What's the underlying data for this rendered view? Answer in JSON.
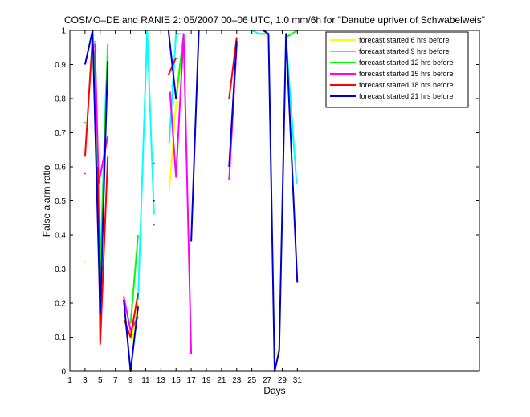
{
  "chart_data": {
    "type": "line",
    "title": "COSMO–DE and RANIE 2: 05/2007 00–06 UTC, 1.0 mm/6h for \"Danube upriver of Schwabelweis\"",
    "xlabel": "Days",
    "ylabel": "False alarm ratio",
    "xlim": [
      1,
      55
    ],
    "ylim": [
      0,
      1
    ],
    "xticks": [
      1,
      3,
      5,
      7,
      9,
      11,
      13,
      15,
      17,
      19,
      21,
      23,
      25,
      27,
      29,
      31
    ],
    "yticks": [
      0,
      0.1,
      0.2,
      0.3,
      0.4,
      0.5,
      0.6,
      0.7,
      0.8,
      0.9,
      1
    ],
    "ytick_labels": [
      "0",
      "0.1",
      "0.2",
      "0.3",
      "0.4",
      "0.5",
      "0.6",
      "0.7",
      "0.8",
      "0.9",
      "1"
    ],
    "grid": false,
    "legend_position": "top-right",
    "series": [
      {
        "name": "forecast started 6 hrs before",
        "color": "#ffff00",
        "segments": [
          [
            [
              3,
              0.32
            ]
          ],
          [
            [
              8.8,
              0.15
            ],
            [
              9.2,
              0.09
            ],
            [
              10,
              0.2
            ]
          ],
          [
            [
              14.1,
              0.53
            ],
            [
              15,
              0.78
            ],
            [
              16,
              0.99
            ]
          ],
          [
            [
              27.8,
              0.04
            ],
            [
              28.5,
              0.06
            ]
          ]
        ]
      },
      {
        "name": "forecast started 9 hrs before",
        "color": "#00ffff",
        "segments": [
          [
            [
              4.3,
              0.97
            ],
            [
              5,
              0.3
            ],
            [
              5.8,
              0.85
            ]
          ],
          [
            [
              10,
              0.21
            ],
            [
              11.2,
              1.0
            ],
            [
              12.1,
              0.46
            ]
          ],
          [
            [
              14.1,
              0.67
            ],
            [
              15,
              0.99
            ],
            [
              15.8,
              0.99
            ]
          ],
          [
            [
              22.2,
              0.67
            ],
            [
              23,
              0.96
            ]
          ],
          [
            [
              25,
              1.0
            ],
            [
              26,
              0.99
            ]
          ],
          [
            [
              29.5,
              0.98
            ],
            [
              30.9,
              0.55
            ]
          ]
        ]
      },
      {
        "name": "forecast started 12 hrs before",
        "color": "#00ff00",
        "segments": [
          [
            [
              3,
              0.73
            ]
          ],
          [
            [
              4.2,
              0.94
            ],
            [
              5,
              0.27
            ],
            [
              6,
              0.96
            ]
          ],
          [
            [
              9,
              0.14
            ],
            [
              10,
              0.4
            ]
          ],
          [
            [
              15,
              0.8
            ],
            [
              16,
              0.99
            ]
          ],
          [
            [
              26,
              0.99
            ],
            [
              27,
              0.99
            ]
          ],
          [
            [
              29.5,
              0.98
            ],
            [
              31,
              1.0
            ]
          ]
        ]
      },
      {
        "name": "forecast started 15 hrs before",
        "color": "#ff00ff",
        "segments": [
          [
            [
              3,
              0.58
            ]
          ],
          [
            [
              4.3,
              0.96
            ],
            [
              4.8,
              0.55
            ],
            [
              6,
              0.69
            ]
          ],
          [
            [
              8.1,
              0.22
            ],
            [
              9,
              0.12
            ],
            [
              10,
              0.16
            ]
          ],
          [
            [
              14.2,
              0.82
            ],
            [
              15,
              0.57
            ],
            [
              16,
              0.99
            ],
            [
              17,
              0.05
            ]
          ],
          [
            [
              22,
              0.56
            ],
            [
              23,
              0.96
            ]
          ]
        ]
      },
      {
        "name": "forecast started 18 hrs before",
        "color": "#ff0000",
        "segments": [
          [
            [
              3,
              0.63
            ],
            [
              4,
              0.98
            ]
          ],
          [
            [
              4.7,
              0.6
            ],
            [
              5,
              0.08
            ],
            [
              6,
              0.63
            ]
          ],
          [
            [
              8.2,
              0.15
            ],
            [
              9,
              0.1
            ],
            [
              10,
              0.23
            ]
          ],
          [
            [
              14,
              0.87
            ],
            [
              15,
              0.92
            ]
          ],
          [
            [
              22,
              0.8
            ],
            [
              23,
              0.98
            ]
          ]
        ]
      },
      {
        "name": "forecast started 21 hrs before",
        "color": "#0000cc",
        "segments": [
          [
            [
              3,
              0.9
            ],
            [
              4,
              1.0
            ],
            [
              5,
              0.17
            ],
            [
              6,
              0.91
            ]
          ],
          [
            [
              8.1,
              0.21
            ],
            [
              9,
              0.0
            ],
            [
              10,
              0.19
            ]
          ],
          [
            [
              14,
              1.0
            ],
            [
              15,
              0.8
            ]
          ],
          [
            [
              17,
              0.38
            ],
            [
              18,
              1.0
            ]
          ],
          [
            [
              22,
              0.6
            ],
            [
              23,
              0.97
            ]
          ],
          [
            [
              26.5,
              1.0
            ],
            [
              27.2,
              0.99
            ],
            [
              28,
              0.0
            ],
            [
              28.6,
              0.06
            ],
            [
              29.5,
              0.99
            ],
            [
              31,
              0.26
            ]
          ]
        ]
      }
    ],
    "annotations": [
      {
        "x": 12.1,
        "y": 0.43,
        "color": "#0000cc"
      },
      {
        "x": 12.1,
        "y": 0.61,
        "color": "#ff0000"
      },
      {
        "x": 12.1,
        "y": 0.5,
        "color": "#000000"
      }
    ]
  }
}
